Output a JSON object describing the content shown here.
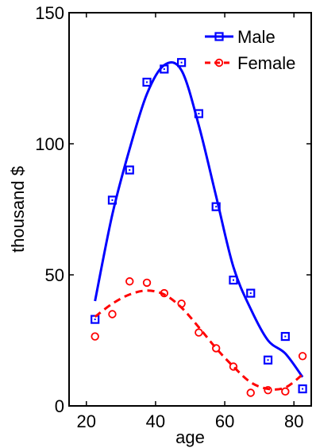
{
  "chart_data": {
    "type": "scatter",
    "title": "",
    "xlabel": "age",
    "ylabel": "thousand $",
    "xlim": [
      15,
      85
    ],
    "ylim": [
      0,
      150
    ],
    "xticks": [
      20,
      40,
      60,
      80
    ],
    "yticks": [
      0,
      50,
      100,
      150
    ],
    "grid": false,
    "legend_position": "top-right",
    "series": [
      {
        "name": "Male",
        "color": "#0000ff",
        "marker": "square",
        "line_style": "solid",
        "points": [
          {
            "x": 22.5,
            "y": 33
          },
          {
            "x": 27.5,
            "y": 78.5
          },
          {
            "x": 32.5,
            "y": 90
          },
          {
            "x": 37.5,
            "y": 123.5
          },
          {
            "x": 42.5,
            "y": 128.5
          },
          {
            "x": 47.5,
            "y": 131
          },
          {
            "x": 52.5,
            "y": 111.5
          },
          {
            "x": 57.5,
            "y": 76
          },
          {
            "x": 62.5,
            "y": 48
          },
          {
            "x": 67.5,
            "y": 43
          },
          {
            "x": 72.5,
            "y": 17.5
          },
          {
            "x": 77.5,
            "y": 26.5
          },
          {
            "x": 82.5,
            "y": 6.5
          }
        ],
        "fit": [
          {
            "x": 22.5,
            "y": 40
          },
          {
            "x": 27.5,
            "y": 73
          },
          {
            "x": 32.5,
            "y": 98
          },
          {
            "x": 37.5,
            "y": 119
          },
          {
            "x": 42.5,
            "y": 130
          },
          {
            "x": 47.5,
            "y": 128
          },
          {
            "x": 52.5,
            "y": 107
          },
          {
            "x": 57.5,
            "y": 80
          },
          {
            "x": 62.5,
            "y": 53
          },
          {
            "x": 67.5,
            "y": 37
          },
          {
            "x": 72.5,
            "y": 25
          },
          {
            "x": 77.5,
            "y": 20
          },
          {
            "x": 82.5,
            "y": 11
          }
        ]
      },
      {
        "name": "Female",
        "color": "#ff0000",
        "marker": "circle",
        "line_style": "dashed",
        "points": [
          {
            "x": 22.5,
            "y": 26.5
          },
          {
            "x": 27.5,
            "y": 35
          },
          {
            "x": 32.5,
            "y": 47.5
          },
          {
            "x": 37.5,
            "y": 47
          },
          {
            "x": 42.5,
            "y": 43
          },
          {
            "x": 47.5,
            "y": 39
          },
          {
            "x": 52.5,
            "y": 28
          },
          {
            "x": 57.5,
            "y": 22
          },
          {
            "x": 62.5,
            "y": 15
          },
          {
            "x": 67.5,
            "y": 5
          },
          {
            "x": 72.5,
            "y": 6
          },
          {
            "x": 77.5,
            "y": 5.5
          },
          {
            "x": 82.5,
            "y": 19
          }
        ],
        "fit": [
          {
            "x": 22.5,
            "y": 34
          },
          {
            "x": 27.5,
            "y": 39
          },
          {
            "x": 32.5,
            "y": 42.5
          },
          {
            "x": 37.5,
            "y": 44
          },
          {
            "x": 42.5,
            "y": 42.5
          },
          {
            "x": 47.5,
            "y": 37.5
          },
          {
            "x": 52.5,
            "y": 30
          },
          {
            "x": 57.5,
            "y": 22
          },
          {
            "x": 62.5,
            "y": 15
          },
          {
            "x": 67.5,
            "y": 9
          },
          {
            "x": 72.5,
            "y": 6.5
          },
          {
            "x": 77.5,
            "y": 7
          },
          {
            "x": 82.5,
            "y": 12
          }
        ]
      }
    ]
  }
}
